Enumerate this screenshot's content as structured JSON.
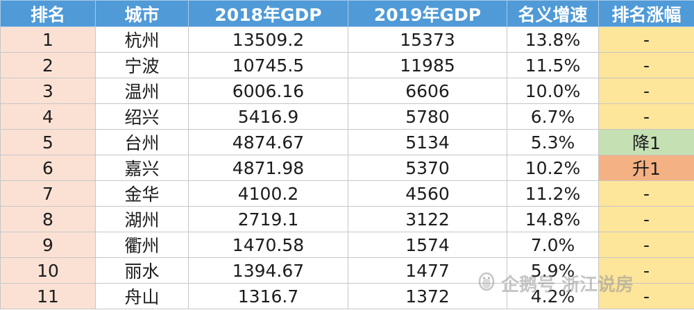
{
  "table": {
    "headers": [
      "排名",
      "城市",
      "2018年GDP",
      "2019年GDP",
      "名义增速",
      "排名涨幅"
    ],
    "rows": [
      {
        "rank": "1",
        "city": "杭州",
        "gdp2018": "13509.2",
        "gdp2019": "15373",
        "growth": "13.8%",
        "change": "-",
        "change_type": "none"
      },
      {
        "rank": "2",
        "city": "宁波",
        "gdp2018": "10745.5",
        "gdp2019": "11985",
        "growth": "11.5%",
        "change": "-",
        "change_type": "none"
      },
      {
        "rank": "3",
        "city": "温州",
        "gdp2018": "6006.16",
        "gdp2019": "6606",
        "growth": "10.0%",
        "change": "-",
        "change_type": "none"
      },
      {
        "rank": "4",
        "city": "绍兴",
        "gdp2018": "5416.9",
        "gdp2019": "5780",
        "growth": "6.7%",
        "change": "-",
        "change_type": "none"
      },
      {
        "rank": "5",
        "city": "台州",
        "gdp2018": "4874.67",
        "gdp2019": "5134",
        "growth": "5.3%",
        "change": "降1",
        "change_type": "down"
      },
      {
        "rank": "6",
        "city": "嘉兴",
        "gdp2018": "4871.98",
        "gdp2019": "5370",
        "growth": "10.2%",
        "change": "升1",
        "change_type": "up"
      },
      {
        "rank": "7",
        "city": "金华",
        "gdp2018": "4100.2",
        "gdp2019": "4560",
        "growth": "11.2%",
        "change": "-",
        "change_type": "none"
      },
      {
        "rank": "8",
        "city": "湖州",
        "gdp2018": "2719.1",
        "gdp2019": "3122",
        "growth": "14.8%",
        "change": "-",
        "change_type": "none"
      },
      {
        "rank": "9",
        "city": "衢州",
        "gdp2018": "1470.58",
        "gdp2019": "1574",
        "growth": "7.0%",
        "change": "-",
        "change_type": "none"
      },
      {
        "rank": "10",
        "city": "丽水",
        "gdp2018": "1394.67",
        "gdp2019": "1477",
        "growth": "5.9%",
        "change": "-",
        "change_type": "none"
      },
      {
        "rank": "11",
        "city": "舟山",
        "gdp2018": "1316.7",
        "gdp2019": "1372",
        "growth": "4.2%",
        "change": "-",
        "change_type": "none"
      }
    ]
  },
  "watermark": {
    "text": "企鹅号 浙江说房",
    "icon": "penguin-icon"
  },
  "colors": {
    "header_bg": "#4f9ad7",
    "rank_bg": "#fbe1d4",
    "change_bg": "#fde59a",
    "change_down_bg": "#c5e0b3",
    "change_up_bg": "#f4b183"
  }
}
